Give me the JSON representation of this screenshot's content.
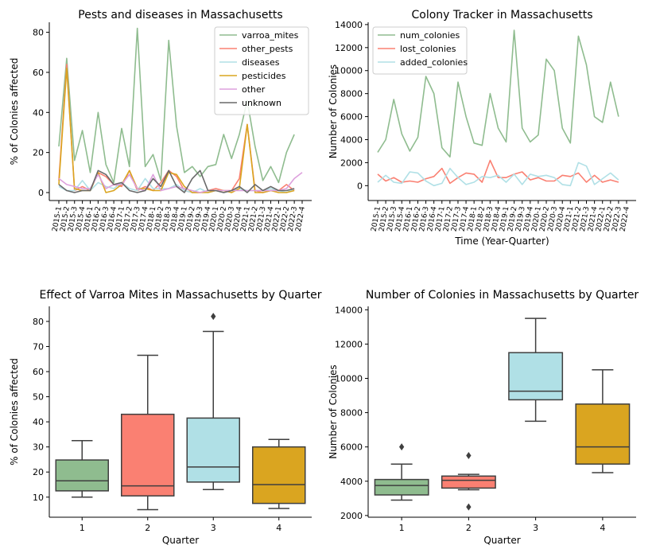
{
  "chart_data": [
    {
      "type": "line",
      "title": "Pests and diseases in Massachusetts",
      "xlabel": "",
      "ylabel": "% of Colonies affected",
      "ylim": [
        0,
        85
      ],
      "yticks": [
        0,
        20,
        40,
        60,
        80
      ],
      "grid": false,
      "legend_position": "top-right",
      "categories": [
        "2015-1",
        "2015-2",
        "2015-3",
        "2015-4",
        "2016-1",
        "2016-2",
        "2016-3",
        "2016-4",
        "2017-1",
        "2017-2",
        "2017-3",
        "2017-4",
        "2018-1",
        "2018-2",
        "2018-3",
        "2018-4",
        "2019-1",
        "2019-2",
        "2019-3",
        "2019-4",
        "2020-1",
        "2020-2",
        "2020-3",
        "2020-4",
        "2021-1",
        "2021-2",
        "2021-3",
        "2021-4",
        "2022-1",
        "2022-2",
        "2022-3",
        "2022-4"
      ],
      "series": [
        {
          "name": "varroa_mites",
          "color": "#8fbc8f",
          "values": [
            23,
            67,
            16,
            31,
            10,
            40,
            14,
            5,
            32,
            13,
            82,
            13,
            19,
            6,
            76,
            33,
            10,
            13,
            8,
            13,
            14,
            29,
            17,
            29,
            46,
            23,
            6,
            13,
            5,
            20,
            29,
            null
          ]
        },
        {
          "name": "other_pests",
          "color": "#fa8072",
          "values": [
            6,
            64,
            1,
            3,
            1,
            10,
            8,
            4,
            3,
            11,
            1,
            3,
            1,
            5,
            11,
            8,
            1,
            0,
            0,
            1,
            2,
            1,
            1,
            7,
            34,
            1,
            0,
            1,
            1,
            4,
            1,
            null
          ]
        },
        {
          "name": "diseases",
          "color": "#b0e0e6",
          "values": [
            3,
            1,
            1,
            6,
            1,
            5,
            3,
            2,
            5,
            2,
            1,
            7,
            2,
            2,
            2,
            4,
            1,
            0,
            2,
            0,
            1,
            0,
            1,
            2,
            1,
            1,
            1,
            2,
            1,
            0,
            2,
            null
          ]
        },
        {
          "name": "pesticides",
          "color": "#daa520",
          "values": [
            4,
            62,
            2,
            1,
            1,
            10,
            0,
            1,
            4,
            11,
            2,
            2,
            1,
            1,
            10,
            9,
            3,
            0,
            0,
            0,
            1,
            1,
            0,
            2,
            34,
            0,
            0,
            1,
            0,
            0,
            1,
            null
          ]
        },
        {
          "name": "other",
          "color": "#dda0dd",
          "values": [
            7,
            4,
            3,
            2,
            2,
            9,
            2,
            4,
            4,
            9,
            2,
            1,
            9,
            1,
            2,
            3,
            2,
            1,
            0,
            1,
            1,
            1,
            1,
            1,
            1,
            1,
            1,
            1,
            1,
            2,
            7,
            10
          ]
        },
        {
          "name": "unknown",
          "color": "#696969",
          "values": [
            4,
            1,
            0,
            1,
            1,
            11,
            9,
            4,
            5,
            1,
            0,
            1,
            7,
            3,
            11,
            3,
            0,
            7,
            11,
            1,
            1,
            0,
            1,
            3,
            0,
            4,
            1,
            3,
            1,
            1,
            2,
            null
          ]
        }
      ]
    },
    {
      "type": "line",
      "title": "Colony Tracker in Massachusetts",
      "xlabel": "Time (Year-Quarter)",
      "ylabel": "Number of Colonies",
      "ylim": [
        -600,
        14200
      ],
      "yticks": [
        0,
        2000,
        4000,
        6000,
        8000,
        10000,
        12000,
        14000
      ],
      "grid": false,
      "legend_position": "top-left",
      "categories": [
        "2015-1",
        "2015-2",
        "2015-3",
        "2015-4",
        "2016-1",
        "2016-2",
        "2016-3",
        "2016-4",
        "2017-1",
        "2017-2",
        "2017-3",
        "2017-4",
        "2018-1",
        "2018-2",
        "2018-3",
        "2018-4",
        "2019-1",
        "2019-2",
        "2019-3",
        "2019-4",
        "2020-1",
        "2020-2",
        "2020-3",
        "2020-4",
        "2021-1",
        "2021-2",
        "2021-3",
        "2021-4",
        "2022-1",
        "2022-2",
        "2022-3",
        "2022-4"
      ],
      "series": [
        {
          "name": "num_colonies",
          "color": "#8fbc8f",
          "values": [
            2900,
            4000,
            7500,
            4500,
            3000,
            4200,
            9500,
            8000,
            3300,
            2500,
            9000,
            6000,
            3700,
            3500,
            8000,
            5000,
            3800,
            13500,
            5000,
            3800,
            4400,
            11000,
            10000,
            5000,
            3700,
            13000,
            10500,
            6000,
            5500,
            9000,
            6000,
            null
          ]
        },
        {
          "name": "lost_colonies",
          "color": "#fa8072",
          "values": [
            1000,
            400,
            700,
            300,
            400,
            300,
            600,
            800,
            1500,
            200,
            700,
            1100,
            1000,
            300,
            2200,
            700,
            700,
            1000,
            1200,
            500,
            700,
            400,
            400,
            900,
            800,
            1100,
            300,
            900,
            300,
            500,
            300,
            null
          ]
        },
        {
          "name": "added_colonies",
          "color": "#b0e0e6",
          "values": [
            300,
            900,
            300,
            200,
            1200,
            1100,
            400,
            0,
            200,
            1500,
            700,
            100,
            300,
            800,
            700,
            900,
            300,
            1000,
            100,
            1000,
            800,
            900,
            700,
            100,
            0,
            2000,
            1700,
            100,
            600,
            1100,
            500,
            null
          ]
        }
      ]
    },
    {
      "type": "box",
      "title": "Effect of Varroa Mites in Massachusetts by Quarter",
      "xlabel": "Quarter",
      "ylabel": "% of Colonies affected",
      "ylim": [
        2,
        86
      ],
      "yticks": [
        10,
        20,
        30,
        40,
        50,
        60,
        70,
        80
      ],
      "categories": [
        "1",
        "2",
        "3",
        "4"
      ],
      "boxes": [
        {
          "category": "1",
          "color": "#8fbc8f",
          "whisker_low": 10,
          "q1": 12.5,
          "median": 16.5,
          "q3": 24.8,
          "whisker_high": 32.5,
          "outliers": []
        },
        {
          "category": "2",
          "color": "#fa8072",
          "whisker_low": 5,
          "q1": 10.5,
          "median": 14.5,
          "q3": 43,
          "whisker_high": 66.5,
          "outliers": []
        },
        {
          "category": "3",
          "color": "#b0e0e6",
          "whisker_low": 13,
          "q1": 16,
          "median": 22,
          "q3": 41.5,
          "whisker_high": 76,
          "outliers": [
            82
          ]
        },
        {
          "category": "4",
          "color": "#daa520",
          "whisker_low": 5.5,
          "q1": 7.5,
          "median": 15,
          "q3": 30,
          "whisker_high": 33,
          "outliers": []
        }
      ]
    },
    {
      "type": "box",
      "title": "Number of Colonies in Massachusetts by Quarter",
      "xlabel": "Quarter",
      "ylabel": "Number of Colonies",
      "ylim": [
        1900,
        14200
      ],
      "yticks": [
        2000,
        4000,
        6000,
        8000,
        10000,
        12000,
        14000
      ],
      "categories": [
        "1",
        "2",
        "3",
        "4"
      ],
      "boxes": [
        {
          "category": "1",
          "color": "#8fbc8f",
          "whisker_low": 2900,
          "q1": 3200,
          "median": 3750,
          "q3": 4100,
          "whisker_high": 5000,
          "outliers": [
            6000
          ]
        },
        {
          "category": "2",
          "color": "#fa8072",
          "whisker_low": 3500,
          "q1": 3600,
          "median": 4050,
          "q3": 4300,
          "whisker_high": 4400,
          "outliers": [
            5500,
            2500
          ]
        },
        {
          "category": "3",
          "color": "#b0e0e6",
          "whisker_low": 7500,
          "q1": 8750,
          "median": 9250,
          "q3": 11500,
          "whisker_high": 13500,
          "outliers": []
        },
        {
          "category": "4",
          "color": "#daa520",
          "whisker_low": 4500,
          "q1": 5000,
          "median": 6000,
          "q3": 8500,
          "whisker_high": 10500,
          "outliers": []
        }
      ]
    }
  ]
}
